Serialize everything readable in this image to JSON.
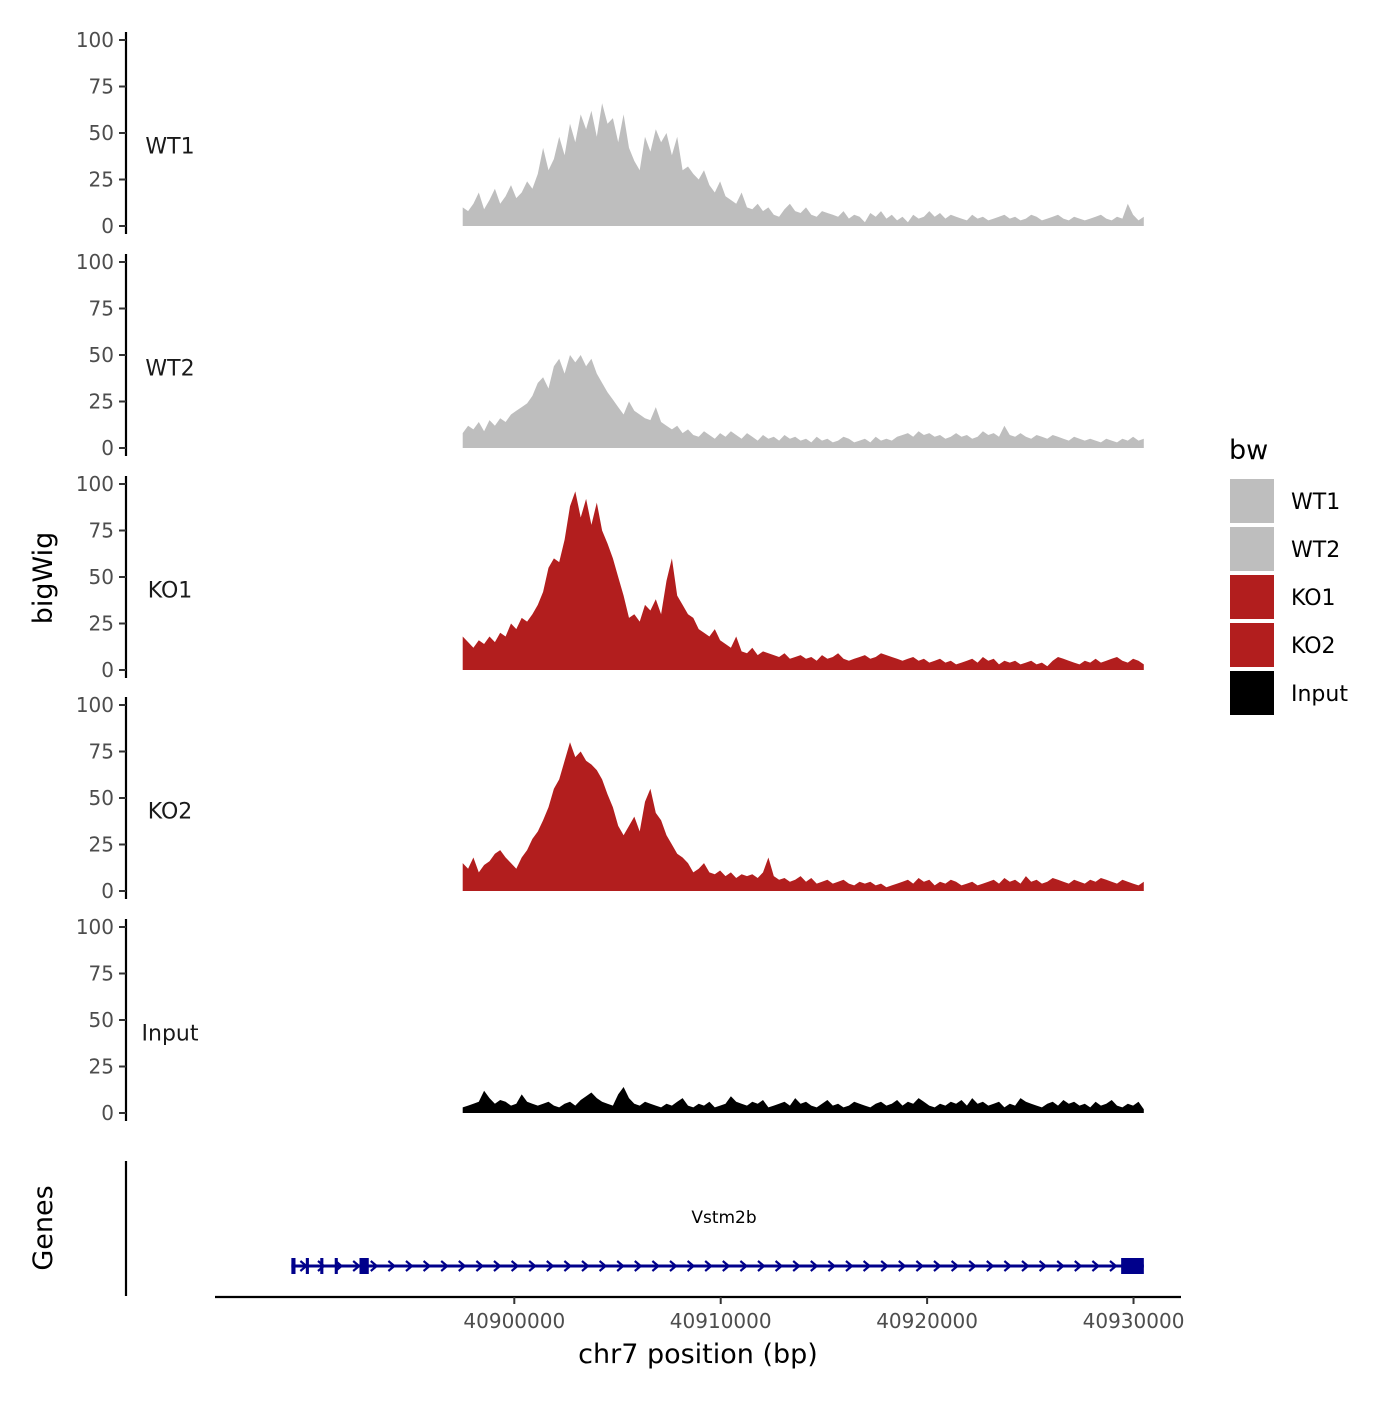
{
  "chart_data": {
    "type": "area",
    "title": "",
    "ylabel": "bigWig",
    "genes_label": "Genes",
    "xlabel": "chr7 position (bp)",
    "xlim": [
      40885500,
      40932300
    ],
    "ylim": [
      0,
      100
    ],
    "y_ticks": [
      0,
      25,
      50,
      75,
      100
    ],
    "x_ticks": [
      40900000,
      40910000,
      40920000,
      40930000
    ],
    "x_tick_labels": [
      "40900000",
      "40910000",
      "40920000",
      "40930000"
    ],
    "track_range": [
      40897500,
      40930500
    ],
    "legend": {
      "title": "bw",
      "entries": [
        {
          "label": "WT1",
          "color": "#bebebe"
        },
        {
          "label": "WT2",
          "color": "#bebebe"
        },
        {
          "label": "KO1",
          "color": "#b21e1e"
        },
        {
          "label": "KO2",
          "color": "#b21e1e"
        },
        {
          "label": "Input",
          "color": "#000000"
        }
      ]
    },
    "series": [
      {
        "name": "WT1",
        "color": "#bebebe",
        "values": [
          10,
          8,
          12,
          18,
          9,
          14,
          20,
          12,
          16,
          22,
          15,
          18,
          24,
          20,
          28,
          42,
          30,
          36,
          48,
          38,
          55,
          45,
          60,
          52,
          62,
          48,
          66,
          55,
          58,
          45,
          60,
          42,
          35,
          30,
          48,
          40,
          52,
          45,
          50,
          38,
          48,
          30,
          32,
          28,
          25,
          30,
          22,
          18,
          24,
          16,
          14,
          12,
          18,
          10,
          9,
          12,
          8,
          10,
          6,
          5,
          9,
          12,
          8,
          7,
          10,
          6,
          5,
          8,
          7,
          6,
          5,
          8,
          4,
          6,
          5,
          2,
          7,
          5,
          8,
          4,
          6,
          3,
          5,
          2,
          6,
          4,
          5,
          8,
          5,
          7,
          4,
          6,
          5,
          4,
          3,
          6,
          4,
          5,
          3,
          4,
          5,
          6,
          4,
          5,
          3,
          4,
          6,
          5,
          3,
          4,
          5,
          6,
          4,
          3,
          5,
          4,
          3,
          4,
          5,
          6,
          4,
          3,
          5,
          4,
          12,
          6,
          3,
          5
        ]
      },
      {
        "name": "WT2",
        "color": "#bebebe",
        "values": [
          8,
          12,
          10,
          14,
          9,
          15,
          12,
          16,
          14,
          18,
          20,
          22,
          24,
          28,
          35,
          38,
          32,
          44,
          48,
          40,
          50,
          46,
          50,
          44,
          48,
          40,
          35,
          30,
          26,
          22,
          18,
          25,
          20,
          18,
          16,
          15,
          22,
          14,
          12,
          10,
          12,
          8,
          10,
          7,
          6,
          9,
          7,
          5,
          8,
          6,
          9,
          7,
          5,
          8,
          6,
          4,
          7,
          5,
          6,
          4,
          7,
          5,
          6,
          4,
          5,
          3,
          6,
          4,
          5,
          3,
          4,
          6,
          5,
          3,
          4,
          5,
          3,
          6,
          4,
          5,
          4,
          6,
          7,
          8,
          6,
          9,
          7,
          8,
          6,
          7,
          5,
          6,
          8,
          6,
          7,
          5,
          6,
          9,
          7,
          8,
          6,
          12,
          7,
          6,
          8,
          6,
          5,
          7,
          6,
          5,
          7,
          6,
          5,
          4,
          6,
          5,
          4,
          5,
          4,
          3,
          5,
          4,
          3,
          5,
          4,
          6,
          4,
          5
        ]
      },
      {
        "name": "KO1",
        "color": "#b21e1e",
        "values": [
          18,
          15,
          12,
          16,
          14,
          18,
          15,
          20,
          18,
          25,
          22,
          28,
          26,
          30,
          35,
          42,
          55,
          60,
          58,
          70,
          88,
          96,
          82,
          92,
          78,
          90,
          75,
          68,
          60,
          50,
          40,
          28,
          30,
          26,
          35,
          32,
          38,
          30,
          48,
          60,
          40,
          35,
          30,
          28,
          22,
          20,
          18,
          22,
          16,
          14,
          12,
          18,
          10,
          9,
          12,
          8,
          10,
          9,
          8,
          7,
          9,
          6,
          7,
          8,
          6,
          7,
          5,
          8,
          6,
          7,
          9,
          6,
          5,
          6,
          7,
          8,
          6,
          7,
          9,
          8,
          7,
          6,
          5,
          6,
          7,
          5,
          6,
          4,
          5,
          6,
          4,
          5,
          3,
          4,
          5,
          6,
          4,
          7,
          5,
          6,
          3,
          5,
          4,
          5,
          3,
          4,
          5,
          3,
          4,
          2,
          5,
          7,
          6,
          5,
          4,
          3,
          5,
          4,
          6,
          4,
          5,
          6,
          7,
          5,
          4,
          6,
          5,
          3
        ]
      },
      {
        "name": "KO2",
        "color": "#b21e1e",
        "values": [
          15,
          12,
          18,
          10,
          14,
          16,
          20,
          22,
          18,
          15,
          12,
          18,
          22,
          28,
          32,
          38,
          45,
          55,
          60,
          70,
          80,
          72,
          75,
          70,
          68,
          65,
          60,
          52,
          45,
          35,
          30,
          35,
          40,
          32,
          48,
          55,
          42,
          38,
          30,
          25,
          20,
          18,
          15,
          10,
          12,
          15,
          10,
          9,
          11,
          8,
          10,
          7,
          9,
          8,
          9,
          7,
          10,
          18,
          8,
          6,
          7,
          5,
          6,
          8,
          5,
          7,
          4,
          5,
          6,
          4,
          5,
          6,
          4,
          3,
          5,
          4,
          5,
          3,
          4,
          2,
          3,
          4,
          5,
          6,
          4,
          7,
          5,
          6,
          3,
          5,
          4,
          6,
          5,
          3,
          4,
          5,
          3,
          4,
          5,
          6,
          4,
          7,
          5,
          6,
          4,
          8,
          5,
          6,
          4,
          5,
          7,
          6,
          5,
          4,
          6,
          5,
          4,
          6,
          5,
          7,
          6,
          5,
          4,
          6,
          5,
          4,
          3,
          5
        ]
      },
      {
        "name": "Input",
        "color": "#000000",
        "values": [
          3,
          4,
          5,
          6,
          12,
          8,
          5,
          7,
          6,
          4,
          5,
          10,
          6,
          5,
          4,
          5,
          6,
          4,
          3,
          5,
          6,
          4,
          7,
          9,
          11,
          8,
          6,
          5,
          4,
          10,
          14,
          8,
          5,
          4,
          6,
          5,
          4,
          3,
          5,
          4,
          6,
          8,
          4,
          3,
          5,
          4,
          6,
          3,
          4,
          5,
          9,
          6,
          5,
          4,
          6,
          5,
          7,
          3,
          4,
          5,
          6,
          4,
          8,
          5,
          6,
          4,
          3,
          5,
          7,
          4,
          5,
          3,
          4,
          6,
          5,
          4,
          3,
          5,
          6,
          4,
          5,
          7,
          4,
          6,
          5,
          8,
          6,
          4,
          3,
          5,
          4,
          6,
          5,
          7,
          4,
          8,
          5,
          6,
          4,
          5,
          6,
          3,
          5,
          4,
          8,
          6,
          5,
          4,
          3,
          5,
          6,
          4,
          7,
          5,
          6,
          4,
          5,
          3,
          6,
          4,
          5,
          7,
          4,
          3,
          5,
          4,
          6,
          2
        ]
      }
    ],
    "gene_track": {
      "gene": "Vstm2b",
      "start": 40889200,
      "end": 40930500,
      "strand": "+",
      "exons": [
        [
          40889200,
          40889400
        ],
        [
          40889900,
          40890050
        ],
        [
          40890600,
          40890750
        ],
        [
          40891300,
          40891450
        ],
        [
          40892500,
          40892950
        ],
        [
          40929400,
          40930500
        ]
      ],
      "color": "#00008b"
    }
  }
}
